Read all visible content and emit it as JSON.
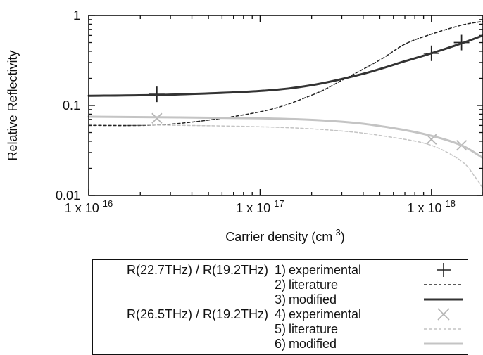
{
  "chart_data": {
    "type": "line",
    "xscale": "log",
    "yscale": "log",
    "xlabel": "Carrier density (cm",
    "xlabel_sup": "-3",
    "xlabel_end": ")",
    "ylabel": "Relative Reflectivity",
    "xlim": [
      1e+16,
      2e+18
    ],
    "ylim": [
      0.01,
      1
    ],
    "x_ticks": [
      {
        "value": 1e+16,
        "base": "1 x 10",
        "exp": "16"
      },
      {
        "value": 1e+17,
        "base": "1 x 10",
        "exp": "17"
      },
      {
        "value": 1e+18,
        "base": "1 x 10",
        "exp": "18"
      }
    ],
    "y_ticks": [
      {
        "value": 1,
        "label": "1"
      },
      {
        "value": 0.1,
        "label": "0.1"
      },
      {
        "value": 0.01,
        "label": "0.01"
      }
    ],
    "series": [
      {
        "name": "experimental",
        "group": "R(22.7THz) / R(19.2THz)",
        "number": "1)",
        "style": "plus",
        "color": "#222222",
        "points": [
          [
            2.5e+16,
            0.133
          ],
          [
            1e+18,
            0.38
          ],
          [
            1.5e+18,
            0.5
          ]
        ]
      },
      {
        "name": "literature",
        "group": "",
        "number": "2)",
        "style": "dashed",
        "color": "#222222",
        "points": [
          [
            1e+16,
            0.06
          ],
          [
            3e+16,
            0.062
          ],
          [
            1e+17,
            0.085
          ],
          [
            2e+17,
            0.13
          ],
          [
            3e+17,
            0.19
          ],
          [
            5e+17,
            0.32
          ],
          [
            7e+17,
            0.48
          ],
          [
            1e+18,
            0.62
          ],
          [
            1.5e+18,
            0.78
          ],
          [
            2e+18,
            0.86
          ]
        ]
      },
      {
        "name": "modified",
        "group": "",
        "number": "3)",
        "style": "solid",
        "color": "#333333",
        "points": [
          [
            1e+16,
            0.128
          ],
          [
            3e+16,
            0.132
          ],
          [
            1e+17,
            0.145
          ],
          [
            2e+17,
            0.168
          ],
          [
            4e+17,
            0.225
          ],
          [
            7e+17,
            0.31
          ],
          [
            1e+18,
            0.38
          ],
          [
            1.5e+18,
            0.49
          ],
          [
            2e+18,
            0.6
          ]
        ]
      },
      {
        "name": "experimental",
        "group": "R(26.5THz) / R(19.2THz)",
        "number": "4)",
        "style": "cross",
        "color": "#b4b4b4",
        "points": [
          [
            2.5e+16,
            0.072
          ],
          [
            1e+18,
            0.042
          ],
          [
            1.5e+18,
            0.036
          ]
        ]
      },
      {
        "name": "literature",
        "group": "",
        "number": "5)",
        "style": "dashed",
        "color": "#c4c4c4",
        "points": [
          [
            1e+16,
            0.062
          ],
          [
            1e+17,
            0.058
          ],
          [
            3e+17,
            0.052
          ],
          [
            6e+17,
            0.044
          ],
          [
            1e+18,
            0.036
          ],
          [
            1.5e+18,
            0.024
          ],
          [
            1.8e+18,
            0.016
          ],
          [
            2e+18,
            0.012
          ]
        ]
      },
      {
        "name": "modified",
        "group": "",
        "number": "6)",
        "style": "solid",
        "color": "#c4c4c4",
        "points": [
          [
            1e+16,
            0.075
          ],
          [
            1e+17,
            0.072
          ],
          [
            3e+17,
            0.066
          ],
          [
            6e+17,
            0.056
          ],
          [
            1e+18,
            0.046
          ],
          [
            1.5e+18,
            0.036
          ],
          [
            2e+18,
            0.026
          ]
        ]
      }
    ]
  }
}
